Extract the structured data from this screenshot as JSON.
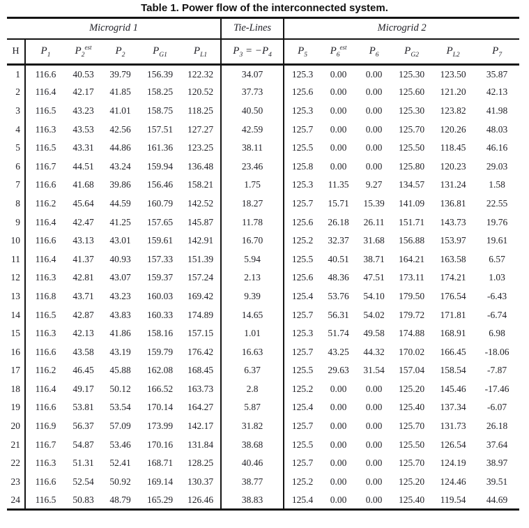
{
  "title": "Table 1. Power flow of the interconnected system.",
  "table": {
    "group_headers": [
      {
        "label": "Microgrid 1"
      },
      {
        "label": "Tie-Lines"
      },
      {
        "label": "Microgrid 2"
      }
    ],
    "hour_header": "H",
    "columns": [
      {
        "base": "P",
        "sub": "1",
        "sup": ""
      },
      {
        "base": "P",
        "sub": "2",
        "sup": "est"
      },
      {
        "base": "P",
        "sub": "2",
        "sup": ""
      },
      {
        "base": "P",
        "sub": "G1",
        "sup": ""
      },
      {
        "base": "P",
        "sub": "L1",
        "sup": ""
      },
      {
        "base": "P",
        "sub": "5",
        "sup": ""
      },
      {
        "base": "P",
        "sub": "6",
        "sup": "est"
      },
      {
        "base": "P",
        "sub": "6",
        "sup": ""
      },
      {
        "base": "P",
        "sub": "G2",
        "sup": ""
      },
      {
        "base": "P",
        "sub": "L2",
        "sup": ""
      },
      {
        "base": "P",
        "sub": "7",
        "sup": ""
      }
    ],
    "tie_header": {
      "p1": "P",
      "s1": "3",
      "op": " = −",
      "p2": "P",
      "s2": "4"
    },
    "rows": [
      [
        "1",
        "116.6",
        "40.53",
        "39.79",
        "156.39",
        "122.32",
        "34.07",
        "125.3",
        "0.00",
        "0.00",
        "125.30",
        "123.50",
        "35.87"
      ],
      [
        "2",
        "116.4",
        "42.17",
        "41.85",
        "158.25",
        "120.52",
        "37.73",
        "125.6",
        "0.00",
        "0.00",
        "125.60",
        "121.20",
        "42.13"
      ],
      [
        "3",
        "116.5",
        "43.23",
        "41.01",
        "158.75",
        "118.25",
        "40.50",
        "125.3",
        "0.00",
        "0.00",
        "125.30",
        "123.82",
        "41.98"
      ],
      [
        "4",
        "116.3",
        "43.53",
        "42.56",
        "157.51",
        "127.27",
        "42.59",
        "125.7",
        "0.00",
        "0.00",
        "125.70",
        "120.26",
        "48.03"
      ],
      [
        "5",
        "116.5",
        "43.31",
        "44.86",
        "161.36",
        "123.25",
        "38.11",
        "125.5",
        "0.00",
        "0.00",
        "125.50",
        "118.45",
        "46.16"
      ],
      [
        "6",
        "116.7",
        "44.51",
        "43.24",
        "159.94",
        "136.48",
        "23.46",
        "125.8",
        "0.00",
        "0.00",
        "125.80",
        "120.23",
        "29.03"
      ],
      [
        "7",
        "116.6",
        "41.68",
        "39.86",
        "156.46",
        "158.21",
        "1.75",
        "125.3",
        "11.35",
        "9.27",
        "134.57",
        "131.24",
        "1.58"
      ],
      [
        "8",
        "116.2",
        "45.64",
        "44.59",
        "160.79",
        "142.52",
        "18.27",
        "125.7",
        "15.71",
        "15.39",
        "141.09",
        "136.81",
        "22.55"
      ],
      [
        "9",
        "116.4",
        "42.47",
        "41.25",
        "157.65",
        "145.87",
        "11.78",
        "125.6",
        "26.18",
        "26.11",
        "151.71",
        "143.73",
        "19.76"
      ],
      [
        "10",
        "116.6",
        "43.13",
        "43.01",
        "159.61",
        "142.91",
        "16.70",
        "125.2",
        "32.37",
        "31.68",
        "156.88",
        "153.97",
        "19.61"
      ],
      [
        "11",
        "116.4",
        "41.37",
        "40.93",
        "157.33",
        "151.39",
        "5.94",
        "125.5",
        "40.51",
        "38.71",
        "164.21",
        "163.58",
        "6.57"
      ],
      [
        "12",
        "116.3",
        "42.81",
        "43.07",
        "159.37",
        "157.24",
        "2.13",
        "125.6",
        "48.36",
        "47.51",
        "173.11",
        "174.21",
        "1.03"
      ],
      [
        "13",
        "116.8",
        "43.71",
        "43.23",
        "160.03",
        "169.42",
        "9.39",
        "125.4",
        "53.76",
        "54.10",
        "179.50",
        "176.54",
        "-6.43"
      ],
      [
        "14",
        "116.5",
        "42.87",
        "43.83",
        "160.33",
        "174.89",
        "14.65",
        "125.7",
        "56.31",
        "54.02",
        "179.72",
        "171.81",
        "-6.74"
      ],
      [
        "15",
        "116.3",
        "42.13",
        "41.86",
        "158.16",
        "157.15",
        "1.01",
        "125.3",
        "51.74",
        "49.58",
        "174.88",
        "168.91",
        "6.98"
      ],
      [
        "16",
        "116.6",
        "43.58",
        "43.19",
        "159.79",
        "176.42",
        "16.63",
        "125.7",
        "43.25",
        "44.32",
        "170.02",
        "166.45",
        "-18.06"
      ],
      [
        "17",
        "116.2",
        "46.45",
        "45.88",
        "162.08",
        "168.45",
        "6.37",
        "125.5",
        "29.63",
        "31.54",
        "157.04",
        "158.54",
        "-7.87"
      ],
      [
        "18",
        "116.4",
        "49.17",
        "50.12",
        "166.52",
        "163.73",
        "2.8",
        "125.2",
        "0.00",
        "0.00",
        "125.20",
        "145.46",
        "-17.46"
      ],
      [
        "19",
        "116.6",
        "53.81",
        "53.54",
        "170.14",
        "164.27",
        "5.87",
        "125.4",
        "0.00",
        "0.00",
        "125.40",
        "137.34",
        "-6.07"
      ],
      [
        "20",
        "116.9",
        "56.37",
        "57.09",
        "173.99",
        "142.17",
        "31.82",
        "125.7",
        "0.00",
        "0.00",
        "125.70",
        "131.73",
        "26.18"
      ],
      [
        "21",
        "116.7",
        "54.87",
        "53.46",
        "170.16",
        "131.84",
        "38.68",
        "125.5",
        "0.00",
        "0.00",
        "125.50",
        "126.54",
        "37.64"
      ],
      [
        "22",
        "116.3",
        "51.31",
        "52.41",
        "168.71",
        "128.25",
        "40.46",
        "125.7",
        "0.00",
        "0.00",
        "125.70",
        "124.19",
        "38.97"
      ],
      [
        "23",
        "116.6",
        "52.54",
        "50.92",
        "169.14",
        "130.37",
        "38.77",
        "125.2",
        "0.00",
        "0.00",
        "125.20",
        "124.46",
        "39.51"
      ],
      [
        "24",
        "116.5",
        "50.83",
        "48.79",
        "165.29",
        "126.46",
        "38.83",
        "125.4",
        "0.00",
        "0.00",
        "125.40",
        "119.54",
        "44.69"
      ]
    ]
  }
}
